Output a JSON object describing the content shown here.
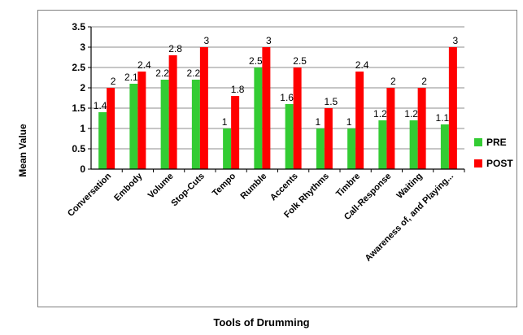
{
  "chart_data": {
    "type": "bar",
    "title": "",
    "xlabel": "Tools of Drumming",
    "ylabel": "Mean Value",
    "ylim": [
      0,
      3.5
    ],
    "yticks": [
      "0",
      "0.5",
      "1",
      "1.5",
      "2",
      "2.5",
      "3",
      "3.5"
    ],
    "grid": true,
    "legend_position": "right",
    "categories": [
      "Conversation",
      "Embody",
      "Volume",
      "Stop-Cuts",
      "Tempo",
      "Rumble",
      "Accents",
      "Folk Rhythms",
      "Timbre",
      "Call-Response",
      "Waiting",
      "Awareness of, and Playing..."
    ],
    "series": [
      {
        "name": "PRE",
        "color": "#33cc33",
        "values": [
          1.4,
          2.1,
          2.2,
          2.2,
          1,
          2.5,
          1.6,
          1,
          1,
          1.2,
          1.2,
          1.1
        ],
        "labels": [
          "1.4",
          "2.1",
          "2.2",
          "2.2",
          "1",
          "2.5",
          "1.6",
          "1",
          "1",
          "1.2",
          "1.2",
          "1.1"
        ]
      },
      {
        "name": "POST",
        "color": "#ff0000",
        "values": [
          2,
          2.4,
          2.8,
          3,
          1.8,
          3,
          2.5,
          1.5,
          2.4,
          2,
          2,
          3
        ],
        "labels": [
          "2",
          "2.4",
          "2.8",
          "3",
          "1.8",
          "3",
          "2.5",
          "1.5",
          "2.4",
          "2",
          "2",
          "3"
        ]
      }
    ]
  }
}
